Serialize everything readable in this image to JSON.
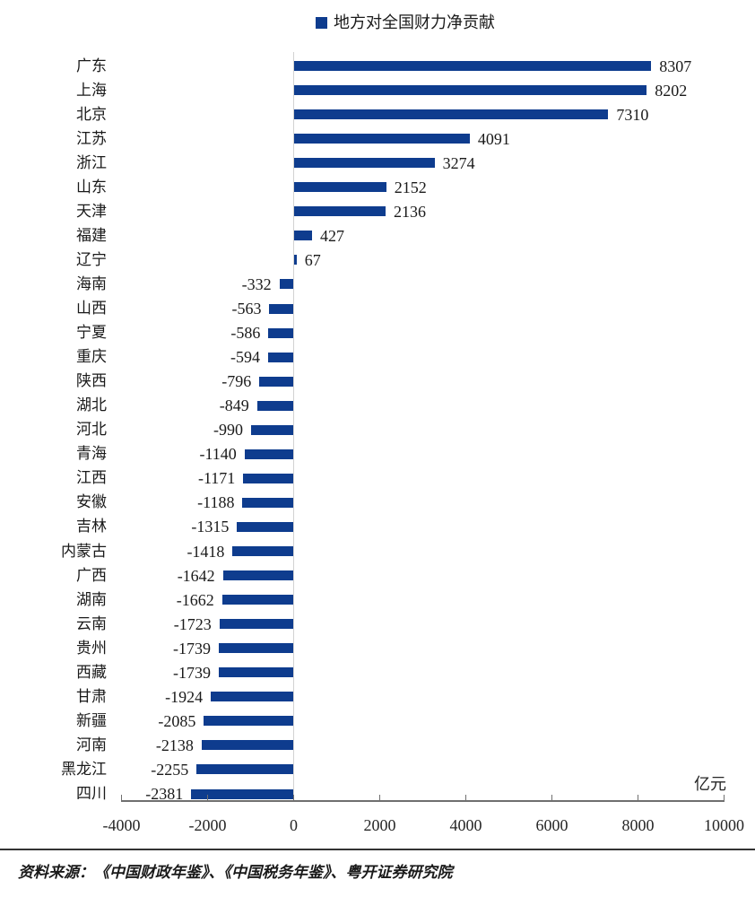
{
  "legend": "地方对全国财力净贡献",
  "source": "资料来源：《中国财政年鉴》、《中国税务年鉴》、粤开证券研究院",
  "colors": {
    "bar": "#0e3c8e",
    "zero_line": "#d2d2d2",
    "axis": "#6f6f6f",
    "text": "#1a1a1a"
  },
  "chart_data": {
    "type": "bar",
    "orientation": "horizontal",
    "legend_label": "地方对全国财力净贡献",
    "legend_position": "top-center",
    "unit": "亿元",
    "categories": [
      "广东",
      "上海",
      "北京",
      "江苏",
      "浙江",
      "山东",
      "天津",
      "福建",
      "辽宁",
      "海南",
      "山西",
      "宁夏",
      "重庆",
      "陕西",
      "湖北",
      "河北",
      "青海",
      "江西",
      "安徽",
      "吉林",
      "内蒙古",
      "广西",
      "湖南",
      "云南",
      "贵州",
      "西藏",
      "甘肃",
      "新疆",
      "河南",
      "黑龙江",
      "四川"
    ],
    "values": [
      8307,
      8202,
      7310,
      4091,
      3274,
      2152,
      2136,
      427,
      67,
      -332,
      -563,
      -586,
      -594,
      -796,
      -849,
      -990,
      -1140,
      -1171,
      -1188,
      -1315,
      -1418,
      -1642,
      -1662,
      -1723,
      -1739,
      -1739,
      -1924,
      -2085,
      -2138,
      -2255,
      -2381
    ],
    "x_ticks": [
      -4000,
      -2000,
      0,
      2000,
      4000,
      6000,
      8000,
      10000
    ],
    "xlim": [
      -4000,
      10000
    ],
    "xlabel": "",
    "ylabel": "",
    "gridlines": "zero-line-only",
    "bar_value_labels": true
  }
}
